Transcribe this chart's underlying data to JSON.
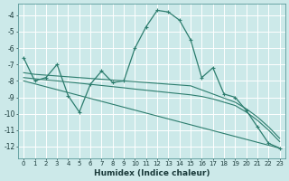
{
  "xlabel": "Humidex (Indice chaleur)",
  "bg_color": "#cce9e9",
  "grid_color": "#b0d8d8",
  "line_color": "#2d7d6e",
  "xlim": [
    -0.5,
    23.5
  ],
  "ylim": [
    -12.7,
    -3.3
  ],
  "yticks": [
    -12,
    -11,
    -10,
    -9,
    -8,
    -7,
    -6,
    -5,
    -4
  ],
  "xticks": [
    0,
    1,
    2,
    3,
    4,
    5,
    6,
    7,
    8,
    9,
    10,
    11,
    12,
    13,
    14,
    15,
    16,
    17,
    18,
    19,
    20,
    21,
    22,
    23
  ],
  "line_main_x": [
    0,
    1,
    2,
    3,
    4,
    5,
    6,
    7,
    8,
    9,
    10,
    11,
    12,
    13,
    14,
    15,
    16,
    17,
    18,
    19,
    20,
    21,
    22,
    23
  ],
  "line_main_y": [
    -6.6,
    -8.0,
    -7.8,
    -7.0,
    -8.9,
    -9.9,
    -8.2,
    -7.4,
    -8.1,
    -8.0,
    -6.0,
    -4.7,
    -3.7,
    -3.8,
    -4.3,
    -5.5,
    -7.8,
    -7.2,
    -8.8,
    -9.0,
    -9.8,
    -10.8,
    -11.8,
    -12.1
  ],
  "line2_x": [
    0,
    1,
    2,
    3,
    4,
    5,
    6,
    7,
    8,
    9,
    10,
    11,
    12,
    13,
    14,
    15,
    16,
    17,
    18,
    19,
    20,
    21,
    22,
    23
  ],
  "line2_y": [
    -7.5,
    -7.6,
    -7.65,
    -7.7,
    -7.75,
    -7.8,
    -7.85,
    -7.9,
    -7.95,
    -8.0,
    -8.05,
    -8.1,
    -8.15,
    -8.2,
    -8.25,
    -8.3,
    -8.55,
    -8.8,
    -9.05,
    -9.3,
    -9.7,
    -10.2,
    -10.8,
    -11.5
  ],
  "line3_x": [
    0,
    1,
    2,
    3,
    4,
    5,
    6,
    7,
    8,
    9,
    10,
    11,
    12,
    13,
    14,
    15,
    16,
    17,
    18,
    19,
    20,
    21,
    22,
    23
  ],
  "line3_y": [
    -7.8,
    -7.87,
    -7.94,
    -8.0,
    -8.07,
    -8.14,
    -8.21,
    -8.28,
    -8.35,
    -8.42,
    -8.5,
    -8.57,
    -8.64,
    -8.71,
    -8.78,
    -8.85,
    -8.95,
    -9.1,
    -9.3,
    -9.5,
    -9.9,
    -10.4,
    -11.0,
    -11.7
  ],
  "line4_x": [
    0,
    23
  ],
  "line4_y": [
    -8.0,
    -12.1
  ]
}
